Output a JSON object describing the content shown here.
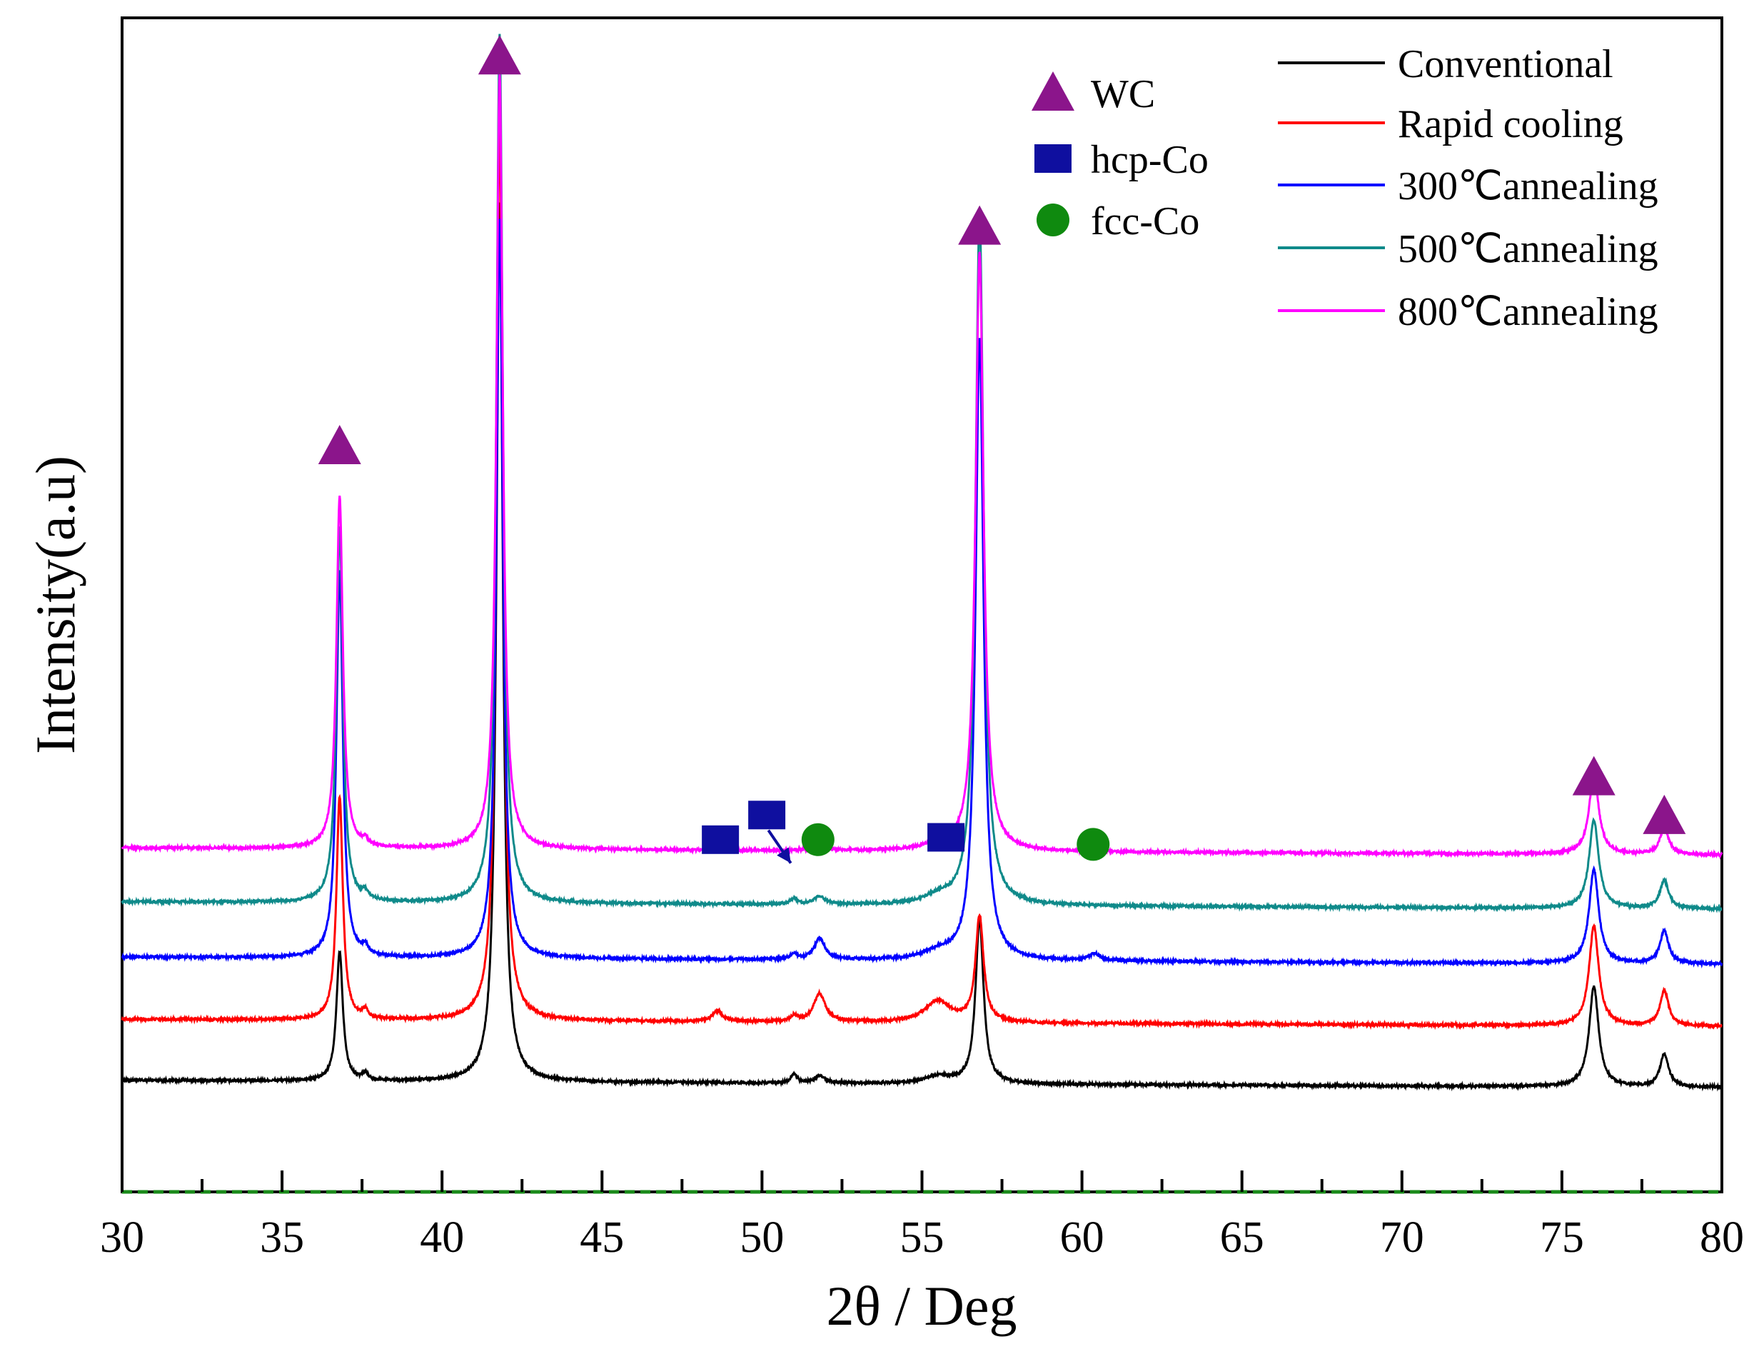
{
  "chart_data": {
    "type": "line",
    "title": "",
    "xlabel": "2θ / Deg",
    "ylabel": "Intensity(a.u)",
    "xlim": [
      30,
      80
    ],
    "ylim": [
      0,
      1
    ],
    "xticks": [
      30,
      35,
      40,
      45,
      50,
      55,
      60,
      65,
      70,
      75,
      80
    ],
    "xtick_labels": [
      "30",
      "35",
      "40",
      "45",
      "50",
      "55",
      "60",
      "65",
      "70",
      "75",
      "80"
    ],
    "yticks_shown": false,
    "grid": false,
    "legend_position": "top-right",
    "series": [
      {
        "name": "Conventional",
        "color": "#000000",
        "baseline": 0.095,
        "noise": 0.002,
        "peaks": [
          {
            "x": 36.8,
            "h": 0.11,
            "w": 0.12
          },
          {
            "x": 37.6,
            "h": 0.006,
            "w": 0.1
          },
          {
            "x": 41.8,
            "h": 0.75,
            "w": 0.12
          },
          {
            "x": 51.0,
            "h": 0.007,
            "w": 0.12
          },
          {
            "x": 51.8,
            "h": 0.006,
            "w": 0.2
          },
          {
            "x": 55.5,
            "h": 0.006,
            "w": 0.5
          },
          {
            "x": 56.8,
            "h": 0.14,
            "w": 0.15
          },
          {
            "x": 76.0,
            "h": 0.085,
            "w": 0.18
          },
          {
            "x": 78.2,
            "h": 0.028,
            "w": 0.16
          }
        ]
      },
      {
        "name": "Rapid cooling",
        "color": "#ff0000",
        "baseline": 0.147,
        "noise": 0.002,
        "peaks": [
          {
            "x": 36.8,
            "h": 0.19,
            "w": 0.12
          },
          {
            "x": 37.6,
            "h": 0.007,
            "w": 0.1
          },
          {
            "x": 41.8,
            "h": 0.77,
            "w": 0.12
          },
          {
            "x": 48.6,
            "h": 0.009,
            "w": 0.2
          },
          {
            "x": 51.0,
            "h": 0.005,
            "w": 0.12
          },
          {
            "x": 51.8,
            "h": 0.024,
            "w": 0.22
          },
          {
            "x": 55.5,
            "h": 0.018,
            "w": 0.5
          },
          {
            "x": 56.8,
            "h": 0.09,
            "w": 0.15
          },
          {
            "x": 76.0,
            "h": 0.085,
            "w": 0.18
          },
          {
            "x": 78.2,
            "h": 0.03,
            "w": 0.16
          }
        ]
      },
      {
        "name": "300℃annealing",
        "color": "#0000ff",
        "baseline": 0.2,
        "noise": 0.002,
        "peaks": [
          {
            "x": 36.8,
            "h": 0.33,
            "w": 0.12
          },
          {
            "x": 37.6,
            "h": 0.007,
            "w": 0.1
          },
          {
            "x": 41.8,
            "h": 0.63,
            "w": 0.12
          },
          {
            "x": 51.0,
            "h": 0.005,
            "w": 0.12
          },
          {
            "x": 51.8,
            "h": 0.018,
            "w": 0.2
          },
          {
            "x": 55.5,
            "h": 0.006,
            "w": 0.5
          },
          {
            "x": 56.8,
            "h": 0.53,
            "w": 0.15
          },
          {
            "x": 60.4,
            "h": 0.006,
            "w": 0.2
          },
          {
            "x": 76.0,
            "h": 0.08,
            "w": 0.18
          },
          {
            "x": 78.2,
            "h": 0.028,
            "w": 0.16
          }
        ]
      },
      {
        "name": "500℃annealing",
        "color": "#0f8a8a",
        "baseline": 0.247,
        "noise": 0.002,
        "peaks": [
          {
            "x": 36.8,
            "h": 0.32,
            "w": 0.12
          },
          {
            "x": 37.6,
            "h": 0.006,
            "w": 0.1
          },
          {
            "x": 41.8,
            "h": 0.74,
            "w": 0.12
          },
          {
            "x": 51.0,
            "h": 0.005,
            "w": 0.12
          },
          {
            "x": 51.8,
            "h": 0.007,
            "w": 0.2
          },
          {
            "x": 55.5,
            "h": 0.006,
            "w": 0.5
          },
          {
            "x": 56.8,
            "h": 0.59,
            "w": 0.15
          },
          {
            "x": 76.0,
            "h": 0.075,
            "w": 0.18
          },
          {
            "x": 78.2,
            "h": 0.024,
            "w": 0.16
          }
        ]
      },
      {
        "name": "800℃annealing",
        "color": "#ff00ff",
        "baseline": 0.293,
        "noise": 0.002,
        "peaks": [
          {
            "x": 36.8,
            "h": 0.3,
            "w": 0.12
          },
          {
            "x": 37.6,
            "h": 0.005,
            "w": 0.1
          },
          {
            "x": 41.8,
            "h": 0.66,
            "w": 0.12
          },
          {
            "x": 51.8,
            "h": 0.005,
            "w": 0.2
          },
          {
            "x": 55.5,
            "h": 0.005,
            "w": 0.5
          },
          {
            "x": 56.8,
            "h": 0.51,
            "w": 0.15
          },
          {
            "x": 76.0,
            "h": 0.068,
            "w": 0.18
          },
          {
            "x": 78.2,
            "h": 0.023,
            "w": 0.16
          }
        ]
      }
    ],
    "phase_legend": [
      {
        "label": "WC",
        "marker": "triangle",
        "color": "#8b158b"
      },
      {
        "label": "hcp-Co",
        "marker": "square",
        "color": "#0f0f9f"
      },
      {
        "label": "fcc-Co",
        "marker": "circle",
        "color": "#0f8a0f"
      }
    ],
    "phase_markers": [
      {
        "phase": "WC",
        "marker": "triangle",
        "x": 36.8,
        "y": 0.635
      },
      {
        "phase": "WC",
        "marker": "triangle",
        "x": 41.8,
        "y": 0.967
      },
      {
        "phase": "WC",
        "marker": "triangle",
        "x": 56.8,
        "y": 0.822
      },
      {
        "phase": "WC",
        "marker": "triangle",
        "x": 76.0,
        "y": 0.353
      },
      {
        "phase": "WC",
        "marker": "triangle",
        "x": 78.2,
        "y": 0.32
      },
      {
        "phase": "hcp-Co",
        "marker": "square",
        "x": 48.7,
        "y": 0.3
      },
      {
        "phase": "hcp-Co",
        "marker": "square",
        "x": 50.15,
        "y": 0.321
      },
      {
        "phase": "hcp-Co",
        "marker": "square",
        "x": 55.75,
        "y": 0.302
      },
      {
        "phase": "fcc-Co",
        "marker": "circle",
        "x": 51.75,
        "y": 0.3
      },
      {
        "phase": "fcc-Co",
        "marker": "circle",
        "x": 60.35,
        "y": 0.296
      }
    ],
    "annotation_arrow": {
      "from": [
        50.2,
        0.308
      ],
      "to": [
        50.9,
        0.28
      ]
    }
  }
}
